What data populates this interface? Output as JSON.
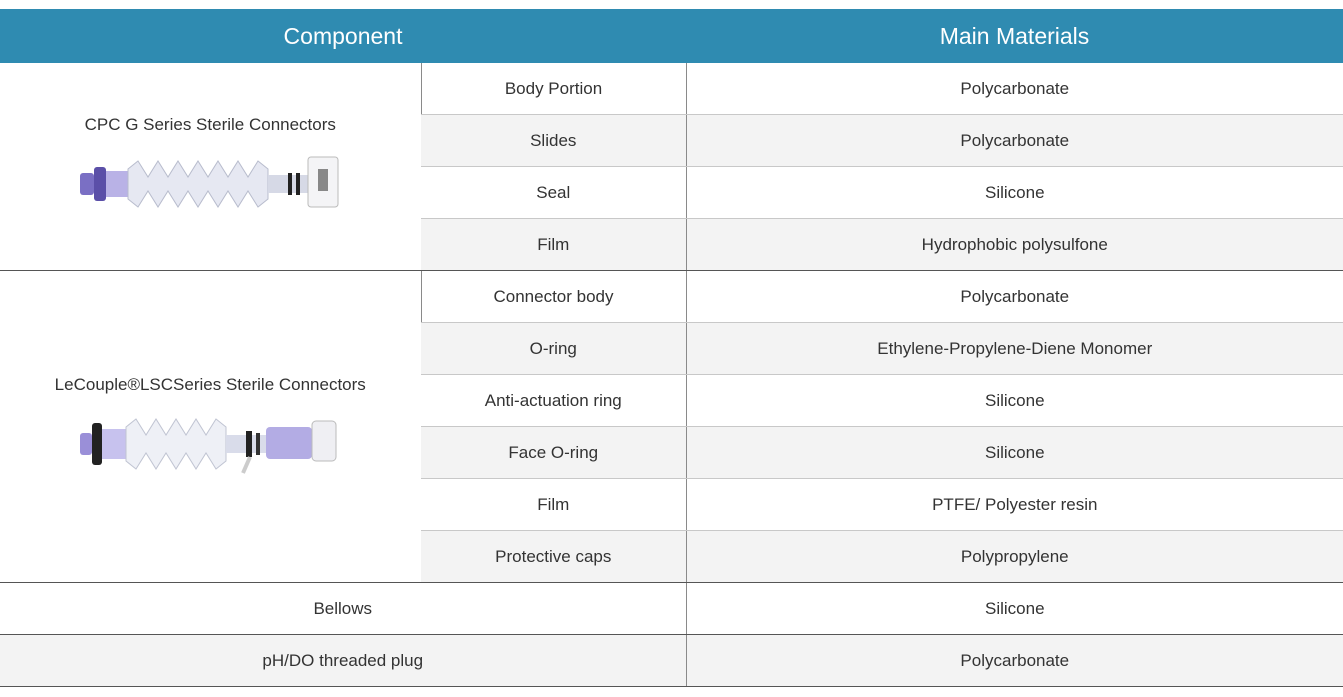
{
  "table": {
    "headers": [
      "Component",
      "Main Materials"
    ],
    "groups": [
      {
        "name": "CPC G Series Sterile Connectors",
        "parts": [
          [
            "Body Portion",
            "Polycarbonate"
          ],
          [
            "Slides",
            "Polycarbonate"
          ],
          [
            "Seal",
            "Silicone"
          ],
          [
            "Film",
            "Hydrophobic polysulfone"
          ]
        ]
      },
      {
        "name": "LeCouple®LSCSeries Sterile Connectors",
        "parts": [
          [
            "Connector body",
            "Polycarbonate"
          ],
          [
            "O-ring",
            "Ethylene-Propylene-Diene Monomer"
          ],
          [
            "Anti-actuation ring",
            "Silicone"
          ],
          [
            "Face O-ring",
            "Silicone"
          ],
          [
            "Film",
            "PTFE/ Polyester resin"
          ],
          [
            "Protective caps",
            "Polypropylene"
          ]
        ]
      }
    ],
    "rows": [
      [
        "Bellows",
        "Silicone"
      ],
      [
        "pH/DO threaded plug",
        "Polycarbonate"
      ]
    ]
  }
}
